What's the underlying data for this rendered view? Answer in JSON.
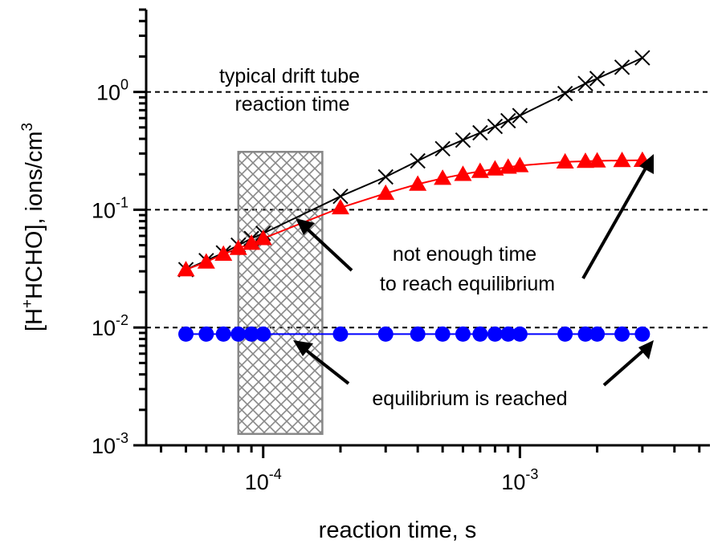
{
  "chart_data": {
    "type": "scatter",
    "xlabel": "reaction time, s",
    "ylabel": "[H+HCHO], ions/cm3",
    "xscale": "log",
    "yscale": "log",
    "xlim": [
      3.5e-05,
      0.0055
    ],
    "ylim": [
      0.001,
      5.0
    ],
    "x_ticks": [
      {
        "value": 0.0001,
        "label": "10",
        "exp": "-4"
      },
      {
        "value": 0.001,
        "label": "10",
        "exp": "-3"
      }
    ],
    "y_ticks": [
      {
        "value": 0.001,
        "label": "10",
        "exp": "-3"
      },
      {
        "value": 0.01,
        "label": "10",
        "exp": "-2"
      },
      {
        "value": 0.1,
        "label": "10",
        "exp": "-1"
      },
      {
        "value": 1,
        "label": "10",
        "exp": "0"
      }
    ],
    "reference_lines_y": [
      0.01,
      0.1,
      1
    ],
    "hatched_region": {
      "x": [
        8e-05,
        0.00017
      ],
      "y": [
        0.00125,
        0.31
      ]
    },
    "series": [
      {
        "marker": "x",
        "color": "#000000",
        "x": [
          5e-05,
          6e-05,
          7e-05,
          8e-05,
          9e-05,
          0.0001,
          0.0002,
          0.0003,
          0.0004,
          0.0005,
          0.0006,
          0.0007,
          0.0008,
          0.0009,
          0.001,
          0.0015,
          0.0018,
          0.002,
          0.0025,
          0.003
        ],
        "y": [
          0.031,
          0.037,
          0.043,
          0.05,
          0.057,
          0.063,
          0.13,
          0.19,
          0.26,
          0.33,
          0.39,
          0.45,
          0.51,
          0.57,
          0.63,
          0.97,
          1.18,
          1.3,
          1.62,
          1.95
        ]
      },
      {
        "marker": "triangle",
        "color": "#ff0000",
        "x": [
          5e-05,
          6e-05,
          7e-05,
          8e-05,
          9e-05,
          0.0001,
          0.0002,
          0.0003,
          0.0004,
          0.0005,
          0.0006,
          0.0007,
          0.0008,
          0.0009,
          0.001,
          0.0015,
          0.0018,
          0.002,
          0.0025,
          0.003
        ],
        "y": [
          0.031,
          0.036,
          0.042,
          0.047,
          0.052,
          0.057,
          0.104,
          0.138,
          0.165,
          0.185,
          0.2,
          0.212,
          0.222,
          0.23,
          0.237,
          0.255,
          0.258,
          0.26,
          0.262,
          0.263
        ]
      },
      {
        "marker": "circle",
        "color": "#0000ff",
        "x": [
          5e-05,
          6e-05,
          7e-05,
          8e-05,
          9e-05,
          0.0001,
          0.0002,
          0.0003,
          0.0004,
          0.0005,
          0.0006,
          0.0007,
          0.0008,
          0.0009,
          0.001,
          0.0015,
          0.0018,
          0.002,
          0.0025,
          0.003
        ],
        "y": [
          0.0088,
          0.0088,
          0.0088,
          0.0088,
          0.0088,
          0.0088,
          0.0088,
          0.0088,
          0.0088,
          0.0088,
          0.0088,
          0.0088,
          0.0088,
          0.0088,
          0.0088,
          0.0088,
          0.0088,
          0.0088,
          0.0088,
          0.0088
        ]
      }
    ],
    "annotations": [
      {
        "lines": [
          "typical drift tube",
          "reaction time"
        ]
      },
      {
        "lines": [
          "not enough time",
          "to reach equilibrium"
        ]
      },
      {
        "lines": [
          "equilibrium is reached"
        ]
      }
    ],
    "ylabel_parts": {
      "pre": "[H",
      "sup1": "+",
      "mid": "HCHO], ions/cm",
      "sup2": "3"
    }
  }
}
